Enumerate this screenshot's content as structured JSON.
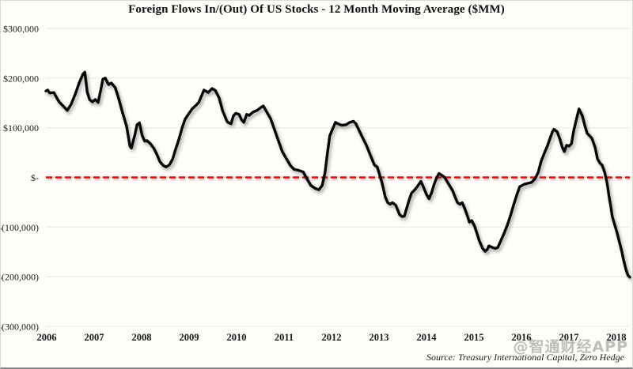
{
  "chart_data": {
    "type": "line",
    "title": "Foreign Flows In/(Out) Of US Stocks  - 12 Month Moving Average ($MM)",
    "xlabel": "",
    "ylabel": "",
    "x_range": [
      2006,
      2018.3
    ],
    "y_range": [
      -300000,
      300000
    ],
    "grid": "horizontal-only",
    "legend": "none",
    "line_color": "#060606",
    "zero_line": {
      "value": 0,
      "color": "#e01010",
      "style": "dashed"
    },
    "x_ticks": [
      "2006",
      "2007",
      "2008",
      "2009",
      "2010",
      "2011",
      "2012",
      "2013",
      "2014",
      "2015",
      "2016",
      "2017",
      "2018"
    ],
    "y_ticks": [
      {
        "value": 300000,
        "label": "$300,000"
      },
      {
        "value": 200000,
        "label": "$200,000"
      },
      {
        "value": 100000,
        "label": "$100,000"
      },
      {
        "value": 0,
        "label": "$-"
      },
      {
        "value": -100000,
        "label": "$(100,000)"
      },
      {
        "value": -200000,
        "label": "$(200,000)"
      },
      {
        "value": -300000,
        "label": "$(300,000)"
      }
    ],
    "series": [
      {
        "name": "Foreign flows 12-month moving average ($MM)",
        "points": [
          [
            2006.0,
            174000
          ],
          [
            2006.04,
            176000
          ],
          [
            2006.08,
            170000
          ],
          [
            2006.17,
            171000
          ],
          [
            2006.23,
            160000
          ],
          [
            2006.28,
            152000
          ],
          [
            2006.37,
            143000
          ],
          [
            2006.45,
            135000
          ],
          [
            2006.53,
            147000
          ],
          [
            2006.62,
            168000
          ],
          [
            2006.7,
            190000
          ],
          [
            2006.78,
            208000
          ],
          [
            2006.82,
            212000
          ],
          [
            2006.87,
            172000
          ],
          [
            2006.92,
            157000
          ],
          [
            2006.98,
            152000
          ],
          [
            2007.04,
            157000
          ],
          [
            2007.1,
            151000
          ],
          [
            2007.16,
            178000
          ],
          [
            2007.2,
            198000
          ],
          [
            2007.25,
            200000
          ],
          [
            2007.32,
            187000
          ],
          [
            2007.38,
            190000
          ],
          [
            2007.46,
            181000
          ],
          [
            2007.53,
            160000
          ],
          [
            2007.61,
            132000
          ],
          [
            2007.7,
            103000
          ],
          [
            2007.77,
            63000
          ],
          [
            2007.8,
            59000
          ],
          [
            2007.87,
            84000
          ],
          [
            2007.92,
            106000
          ],
          [
            2007.97,
            110000
          ],
          [
            2008.03,
            84000
          ],
          [
            2008.08,
            73000
          ],
          [
            2008.13,
            74000
          ],
          [
            2008.2,
            68000
          ],
          [
            2008.27,
            59000
          ],
          [
            2008.33,
            48000
          ],
          [
            2008.4,
            32000
          ],
          [
            2008.47,
            24000
          ],
          [
            2008.53,
            21000
          ],
          [
            2008.6,
            25000
          ],
          [
            2008.67,
            37000
          ],
          [
            2008.73,
            56000
          ],
          [
            2008.8,
            76000
          ],
          [
            2008.87,
            100000
          ],
          [
            2008.93,
            117000
          ],
          [
            2009.0,
            127000
          ],
          [
            2009.08,
            138000
          ],
          [
            2009.17,
            146000
          ],
          [
            2009.22,
            151000
          ],
          [
            2009.33,
            176000
          ],
          [
            2009.42,
            171000
          ],
          [
            2009.5,
            179000
          ],
          [
            2009.57,
            175000
          ],
          [
            2009.65,
            160000
          ],
          [
            2009.72,
            135000
          ],
          [
            2009.8,
            116000
          ],
          [
            2009.83,
            111000
          ],
          [
            2009.9,
            108000
          ],
          [
            2009.95,
            124000
          ],
          [
            2010.0,
            129000
          ],
          [
            2010.07,
            127000
          ],
          [
            2010.12,
            116000
          ],
          [
            2010.17,
            111000
          ],
          [
            2010.23,
            127000
          ],
          [
            2010.28,
            125000
          ],
          [
            2010.37,
            132000
          ],
          [
            2010.45,
            135000
          ],
          [
            2010.53,
            141000
          ],
          [
            2010.58,
            144000
          ],
          [
            2010.65,
            132000
          ],
          [
            2010.73,
            119000
          ],
          [
            2010.82,
            95000
          ],
          [
            2010.9,
            73000
          ],
          [
            2010.98,
            52000
          ],
          [
            2011.07,
            37000
          ],
          [
            2011.15,
            24000
          ],
          [
            2011.23,
            16000
          ],
          [
            2011.33,
            14000
          ],
          [
            2011.42,
            11000
          ],
          [
            2011.5,
            -3000
          ],
          [
            2011.58,
            -16000
          ],
          [
            2011.67,
            -22000
          ],
          [
            2011.75,
            -25000
          ],
          [
            2011.82,
            -16000
          ],
          [
            2011.88,
            10000
          ],
          [
            2011.93,
            49000
          ],
          [
            2011.98,
            84000
          ],
          [
            2012.05,
            100000
          ],
          [
            2012.1,
            111000
          ],
          [
            2012.15,
            108000
          ],
          [
            2012.23,
            105000
          ],
          [
            2012.32,
            106000
          ],
          [
            2012.4,
            111000
          ],
          [
            2012.48,
            113000
          ],
          [
            2012.53,
            108000
          ],
          [
            2012.65,
            84000
          ],
          [
            2012.75,
            65000
          ],
          [
            2012.82,
            48000
          ],
          [
            2012.92,
            25000
          ],
          [
            2012.98,
            21000
          ],
          [
            2013.03,
            5000
          ],
          [
            2013.08,
            -11000
          ],
          [
            2013.15,
            -40000
          ],
          [
            2013.2,
            -51000
          ],
          [
            2013.25,
            -54000
          ],
          [
            2013.3,
            -51000
          ],
          [
            2013.37,
            -56000
          ],
          [
            2013.45,
            -75000
          ],
          [
            2013.5,
            -79000
          ],
          [
            2013.55,
            -78000
          ],
          [
            2013.6,
            -62000
          ],
          [
            2013.65,
            -46000
          ],
          [
            2013.7,
            -32000
          ],
          [
            2013.77,
            -25000
          ],
          [
            2013.82,
            -19000
          ],
          [
            2013.9,
            -8000
          ],
          [
            2013.95,
            -19000
          ],
          [
            2014.02,
            -35000
          ],
          [
            2014.07,
            -43000
          ],
          [
            2014.12,
            -32000
          ],
          [
            2014.17,
            -16000
          ],
          [
            2014.22,
            -3000
          ],
          [
            2014.28,
            8000
          ],
          [
            2014.33,
            5000
          ],
          [
            2014.4,
            0
          ],
          [
            2014.45,
            -8000
          ],
          [
            2014.5,
            -16000
          ],
          [
            2014.57,
            -27000
          ],
          [
            2014.62,
            -40000
          ],
          [
            2014.67,
            -51000
          ],
          [
            2014.72,
            -54000
          ],
          [
            2014.77,
            -51000
          ],
          [
            2014.82,
            -62000
          ],
          [
            2014.88,
            -78000
          ],
          [
            2014.92,
            -90000
          ],
          [
            2014.97,
            -87000
          ],
          [
            2015.03,
            -98000
          ],
          [
            2015.08,
            -113000
          ],
          [
            2015.13,
            -128000
          ],
          [
            2015.2,
            -143000
          ],
          [
            2015.25,
            -149000
          ],
          [
            2015.3,
            -145000
          ],
          [
            2015.33,
            -138000
          ],
          [
            2015.4,
            -141000
          ],
          [
            2015.47,
            -143000
          ],
          [
            2015.52,
            -141000
          ],
          [
            2015.58,
            -128000
          ],
          [
            2015.65,
            -113000
          ],
          [
            2015.72,
            -96000
          ],
          [
            2015.78,
            -79000
          ],
          [
            2015.85,
            -56000
          ],
          [
            2015.92,
            -35000
          ],
          [
            2015.98,
            -19000
          ],
          [
            2016.07,
            -14000
          ],
          [
            2016.15,
            -12000
          ],
          [
            2016.23,
            -10000
          ],
          [
            2016.3,
            -3000
          ],
          [
            2016.37,
            10000
          ],
          [
            2016.43,
            32000
          ],
          [
            2016.5,
            49000
          ],
          [
            2016.57,
            65000
          ],
          [
            2016.62,
            79000
          ],
          [
            2016.67,
            92000
          ],
          [
            2016.7,
            97000
          ],
          [
            2016.77,
            92000
          ],
          [
            2016.82,
            79000
          ],
          [
            2016.88,
            60000
          ],
          [
            2016.92,
            52000
          ],
          [
            2016.97,
            65000
          ],
          [
            2017.02,
            63000
          ],
          [
            2017.07,
            68000
          ],
          [
            2017.12,
            95000
          ],
          [
            2017.18,
            119000
          ],
          [
            2017.23,
            138000
          ],
          [
            2017.3,
            124000
          ],
          [
            2017.35,
            105000
          ],
          [
            2017.4,
            89000
          ],
          [
            2017.45,
            84000
          ],
          [
            2017.5,
            79000
          ],
          [
            2017.57,
            60000
          ],
          [
            2017.62,
            37000
          ],
          [
            2017.67,
            29000
          ],
          [
            2017.72,
            24000
          ],
          [
            2017.77,
            10000
          ],
          [
            2017.82,
            -11000
          ],
          [
            2017.87,
            -43000
          ],
          [
            2017.9,
            -59000
          ],
          [
            2017.93,
            -79000
          ],
          [
            2017.98,
            -95000
          ],
          [
            2018.03,
            -111000
          ],
          [
            2018.08,
            -130000
          ],
          [
            2018.13,
            -149000
          ],
          [
            2018.17,
            -167000
          ],
          [
            2018.22,
            -186000
          ],
          [
            2018.26,
            -197000
          ],
          [
            2018.3,
            -201000
          ]
        ]
      }
    ]
  },
  "footer": {
    "source": "Source: Treasury International Capital, Zero Hedge",
    "watermark": "@智通财经APP"
  }
}
